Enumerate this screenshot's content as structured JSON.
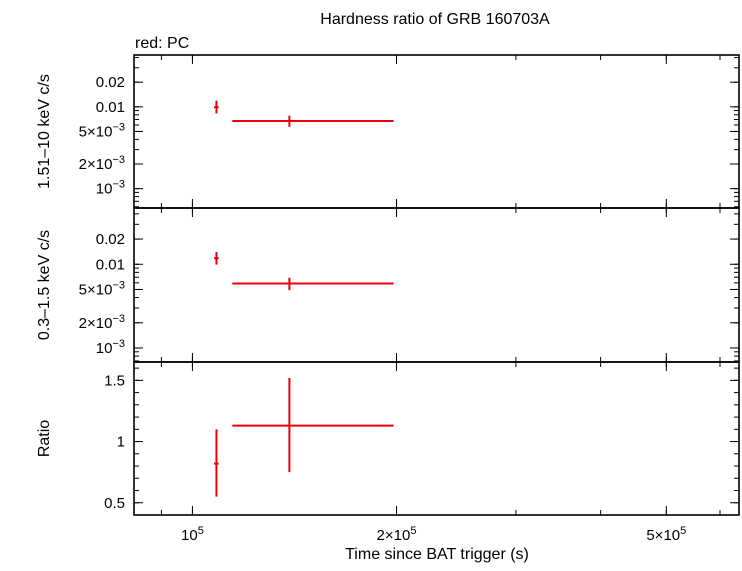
{
  "chart_data": {
    "type": "scatter",
    "title": "Hardness ratio of GRB 160703A",
    "subtitle": "red: PC",
    "xlabel": "Time since BAT trigger (s)",
    "x_scale": "log",
    "xlim": [
      82000,
      640000
    ],
    "x_ticks": [
      {
        "value": 100000,
        "mant": "10",
        "exp": "5"
      },
      {
        "value": 200000,
        "mant": "2×10",
        "exp": "5"
      },
      {
        "value": 500000,
        "mant": "5×10",
        "exp": "5"
      }
    ],
    "series_color": "#e8000b",
    "panels": [
      {
        "id": "hard",
        "ylabel": "1.51–10 keV c/s",
        "y_scale": "log",
        "ylim": [
          0.00058,
          0.043
        ],
        "y_ticks": [
          {
            "value": 0.02,
            "text": "0.02"
          },
          {
            "value": 0.01,
            "text": "0.01"
          },
          {
            "value": 0.005,
            "mant": "5×10",
            "exp": "−3"
          },
          {
            "value": 0.002,
            "mant": "2×10",
            "exp": "−3"
          },
          {
            "value": 0.001,
            "mant": "10",
            "exp": "−3"
          }
        ],
        "points": [
          {
            "x": 108500,
            "xlo": 107600,
            "xhi": 109300,
            "y": 0.0099,
            "ylo": 0.0083,
            "yhi": 0.0119
          },
          {
            "x": 139000,
            "xlo": 114500,
            "xhi": 198000,
            "y": 0.0067,
            "ylo": 0.0057,
            "yhi": 0.0078
          }
        ]
      },
      {
        "id": "soft",
        "ylabel": "0.3–1.5 keV c/s",
        "y_scale": "log",
        "ylim": [
          0.00068,
          0.047
        ],
        "y_ticks": [
          {
            "value": 0.02,
            "text": "0.02"
          },
          {
            "value": 0.01,
            "text": "0.01"
          },
          {
            "value": 0.005,
            "mant": "5×10",
            "exp": "−3"
          },
          {
            "value": 0.002,
            "mant": "2×10",
            "exp": "−3"
          },
          {
            "value": 0.001,
            "mant": "10",
            "exp": "−3"
          }
        ],
        "points": [
          {
            "x": 108500,
            "xlo": 107600,
            "xhi": 109300,
            "y": 0.0118,
            "ylo": 0.0099,
            "yhi": 0.014
          },
          {
            "x": 139000,
            "xlo": 114500,
            "xhi": 198000,
            "y": 0.0059,
            "ylo": 0.0049,
            "yhi": 0.0069
          }
        ]
      },
      {
        "id": "ratio",
        "ylabel": "Ratio",
        "y_scale": "linear",
        "ylim": [
          0.4,
          1.65
        ],
        "y_ticks": [
          {
            "value": 1.5,
            "text": "1.5"
          },
          {
            "value": 1.0,
            "text": "1"
          },
          {
            "value": 0.5,
            "text": "0.5"
          }
        ],
        "points": [
          {
            "x": 108500,
            "xlo": 107600,
            "xhi": 109300,
            "y": 0.82,
            "ylo": 0.55,
            "yhi": 1.1
          },
          {
            "x": 139000,
            "xlo": 114500,
            "xhi": 198000,
            "y": 1.13,
            "ylo": 0.75,
            "yhi": 1.52
          }
        ]
      }
    ]
  }
}
